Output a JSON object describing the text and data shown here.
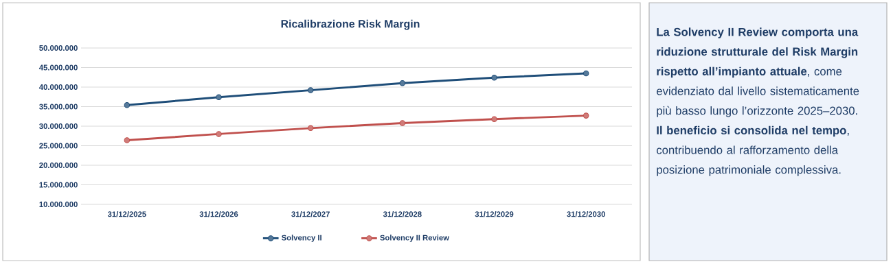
{
  "chart_data": {
    "type": "line",
    "title": "Ricalibrazione Risk Margin",
    "categories": [
      "31/12/2025",
      "31/12/2026",
      "31/12/2027",
      "31/12/2028",
      "31/12/2029",
      "31/12/2030"
    ],
    "series": [
      {
        "name": "Solvency II",
        "color": "#1f4e79",
        "values": [
          35400000,
          37400000,
          39200000,
          41000000,
          42400000,
          43500000
        ]
      },
      {
        "name": "Solvency II Review",
        "color": "#c0504d",
        "values": [
          26400000,
          28000000,
          29500000,
          30800000,
          31800000,
          32700000
        ]
      }
    ],
    "ylim": [
      10000000,
      50000000
    ],
    "yticks": [
      {
        "value": 10000000,
        "label": "10.000.000"
      },
      {
        "value": 15000000,
        "label": "15.000.000"
      },
      {
        "value": 20000000,
        "label": "20.000.000"
      },
      {
        "value": 25000000,
        "label": "25.000.000"
      },
      {
        "value": 30000000,
        "label": "30.000.000"
      },
      {
        "value": 35000000,
        "label": "35.000.000"
      },
      {
        "value": 40000000,
        "label": "40.000.000"
      },
      {
        "value": 45000000,
        "label": "45.000.000"
      },
      {
        "value": 50000000,
        "label": "50.000.000"
      }
    ],
    "grid": "y",
    "legend": "bottom",
    "marker": "circle",
    "annotations": [
      "**La Solvency II Review comporta una riduzione strutturale del Risk Margin rispetto all’impianto attuale**, come evidenziato dal livello sistematicamente più basso lungo l’orizzonte 2025–2030.",
      "**Il beneficio si consolida nel tempo**, contribuendo al rafforzamento della posizione patrimoniale complessiva."
    ]
  }
}
